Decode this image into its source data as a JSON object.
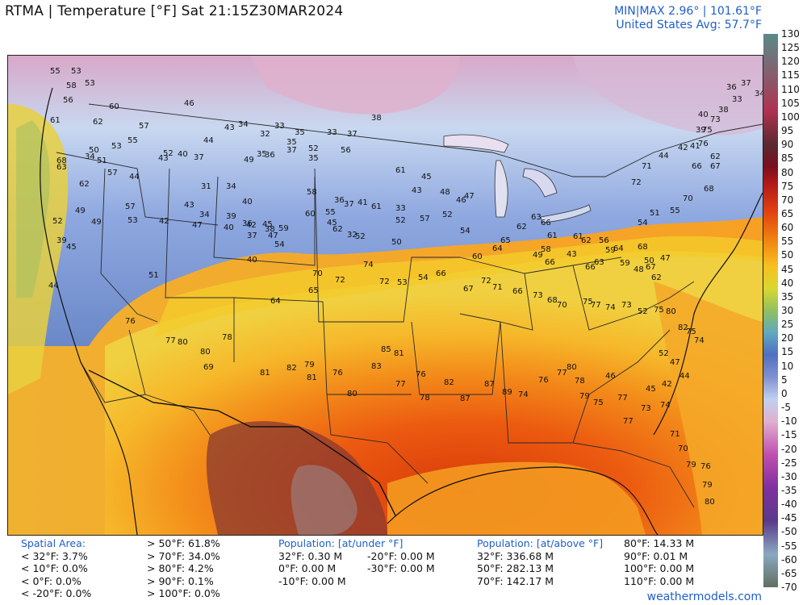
{
  "title": "RTMA | Temperature [°F]  Sat 21:15Z30MAR2024",
  "minmax_line": "MIN|MAX 2.96°  |  101.61°F",
  "avg_line": "United States Avg: 57.7°F",
  "colorbar_ticks": [
    "130",
    "125",
    "120",
    "115",
    "110",
    "105",
    "100",
    "95",
    "90",
    "85",
    "80",
    "75",
    "70",
    "65",
    "60",
    "55",
    "50",
    "45",
    "40",
    "35",
    "30",
    "25",
    "20",
    "15",
    "10",
    "5",
    "0",
    "-5",
    "-10",
    "-15",
    "-20",
    "-25",
    "-30",
    "-35",
    "-40",
    "-45",
    "-50",
    "-55",
    "-60",
    "-65",
    "-70"
  ],
  "spatial": {
    "header": "Spatial Area:",
    "left": [
      "< 32°F: 3.7%",
      "< 10°F: 0.0%",
      "< 0°F: 0.0%",
      "< -20°F: 0.0%"
    ],
    "right": [
      "> 50°F: 61.8%",
      "> 70°F: 34.0%",
      "> 80°F: 4.2%",
      "> 90°F: 0.1%",
      "> 100°F: 0.0%"
    ]
  },
  "pop_under": {
    "header": "Population: [at/under °F]",
    "col1": [
      "32°F: 0.30 M",
      "0°F: 0.00 M",
      "-10°F: 0.00 M"
    ],
    "col2": [
      "-20°F: 0.00 M",
      "-30°F: 0.00 M"
    ]
  },
  "pop_above": {
    "header": "Population: [at/above °F]",
    "col1": [
      "32°F: 336.68 M",
      "50°F: 282.13 M",
      "70°F: 142.17 M"
    ],
    "col2": [
      "80°F: 14.33 M",
      "90°F: 0.01 M",
      "100°F: 0.00 M",
      "110°F: 0.00 M"
    ]
  },
  "footer": "weathermodels.com",
  "station_values": [
    "55",
    "58",
    "53",
    "60",
    "56",
    "53",
    "62",
    "61",
    "57",
    "53",
    "55",
    "52",
    "44",
    "46",
    "49",
    "43",
    "34",
    "36",
    "32",
    "33",
    "35",
    "35",
    "33",
    "37",
    "38",
    "35",
    "62",
    "50",
    "68",
    "63",
    "34",
    "51",
    "57",
    "44",
    "43",
    "40",
    "37",
    "31",
    "34",
    "35",
    "37",
    "52",
    "56",
    "61",
    "45",
    "48",
    "46",
    "47",
    "37",
    "40",
    "36",
    "38",
    "39",
    "40",
    "36",
    "37",
    "61",
    "33",
    "43",
    "52",
    "49",
    "49",
    "53",
    "42",
    "43",
    "47",
    "34",
    "40",
    "42",
    "45",
    "47",
    "58",
    "60",
    "45",
    "41",
    "44",
    "39",
    "45",
    "57",
    "51",
    "54",
    "59",
    "55",
    "62",
    "32",
    "52",
    "50",
    "52",
    "57",
    "52",
    "54",
    "60",
    "64",
    "65",
    "62",
    "63",
    "66",
    "58",
    "49",
    "61",
    "66",
    "43",
    "61",
    "62",
    "56",
    "59",
    "64",
    "66",
    "63",
    "59",
    "68",
    "67",
    "62",
    "64",
    "65",
    "70",
    "72",
    "74",
    "72",
    "53",
    "54",
    "66",
    "67",
    "72",
    "71",
    "66",
    "73",
    "68",
    "70",
    "75",
    "77",
    "74",
    "73",
    "52",
    "75",
    "80",
    "82",
    "75",
    "74",
    "76",
    "78",
    "77",
    "80",
    "80",
    "69",
    "81",
    "82",
    "79",
    "81",
    "76",
    "80",
    "83",
    "85",
    "81",
    "77",
    "76",
    "78",
    "82",
    "87",
    "87",
    "89",
    "74",
    "76",
    "77",
    "80",
    "78",
    "79",
    "77",
    "73",
    "74",
    "71",
    "70",
    "79",
    "76",
    "79",
    "80",
    "75",
    "77",
    "46",
    "45",
    "42",
    "44",
    "47",
    "52",
    "48",
    "50",
    "47",
    "54",
    "51",
    "55",
    "70",
    "68",
    "67",
    "66",
    "62",
    "76",
    "75",
    "73",
    "72",
    "71",
    "44",
    "42",
    "41",
    "39",
    "40",
    "38",
    "36",
    "37",
    "34",
    "33"
  ]
}
